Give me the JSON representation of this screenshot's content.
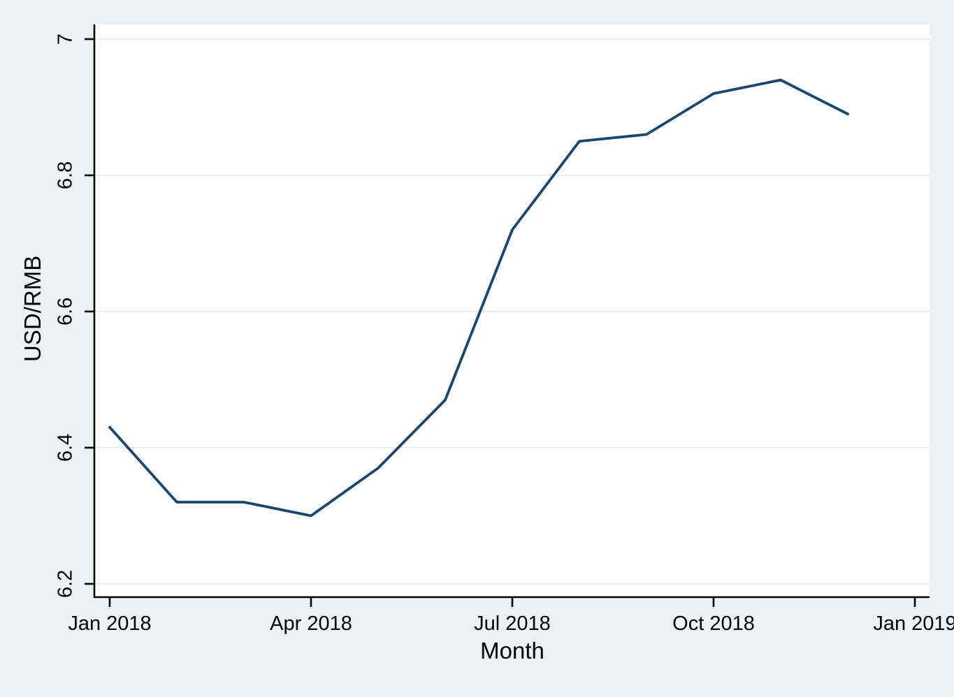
{
  "chart_data": {
    "type": "line",
    "title": "",
    "xlabel": "Month",
    "ylabel": "USD/RMB",
    "ylim": [
      6.2,
      7
    ],
    "x_months_span": 12,
    "grid": true,
    "legend": "none",
    "x": [
      "Jan 2018",
      "Feb 2018",
      "Mar 2018",
      "Apr 2018",
      "May 2018",
      "Jun 2018",
      "Jul 2018",
      "Aug 2018",
      "Sep 2018",
      "Oct 2018",
      "Nov 2018",
      "Dec 2018"
    ],
    "series": [
      {
        "name": "USD/RMB",
        "values": [
          6.43,
          6.32,
          6.32,
          6.3,
          6.37,
          6.47,
          6.72,
          6.85,
          6.86,
          6.92,
          6.94,
          6.89
        ]
      }
    ],
    "x_ticks": [
      {
        "label": "Jan 2018",
        "month_index": 0
      },
      {
        "label": "Apr 2018",
        "month_index": 3
      },
      {
        "label": "Jul 2018",
        "month_index": 6
      },
      {
        "label": "Oct 2018",
        "month_index": 9
      },
      {
        "label": "Jan 2019",
        "month_index": 12
      }
    ],
    "y_ticks": [
      {
        "label": "6.2",
        "value": 6.2
      },
      {
        "label": "6.4",
        "value": 6.4
      },
      {
        "label": "6.6",
        "value": 6.6
      },
      {
        "label": "6.8",
        "value": 6.8
      },
      {
        "label": "7",
        "value": 7
      }
    ]
  },
  "colors": {
    "background": "#eaf2f3",
    "plot_background": "#ffffff",
    "grid": "#e8eff3",
    "axis": "#000000",
    "line": "#1a476f"
  }
}
